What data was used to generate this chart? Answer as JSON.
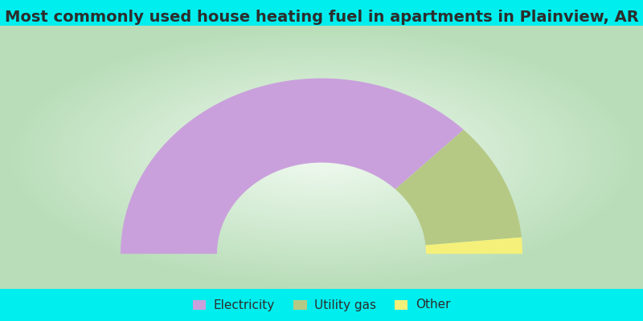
{
  "title": "Most commonly used house heating fuel in apartments in Plainview, AR",
  "segments": [
    {
      "label": "Electricity",
      "value": 75,
      "color": "#c9a0dc"
    },
    {
      "label": "Utility gas",
      "value": 22,
      "color": "#b5c985"
    },
    {
      "label": "Other",
      "value": 3,
      "color": "#f5f07a"
    }
  ],
  "background_color": "#00EEEE",
  "title_color": "#2d2d2d",
  "title_fontsize": 14,
  "legend_fontsize": 11,
  "outer_r": 1.0,
  "inner_r": 0.52,
  "gradient_colors": [
    "#c8e6c9",
    "#e8f5e9",
    "#f0faf0",
    "#e8f5e9",
    "#c8e6c9"
  ]
}
